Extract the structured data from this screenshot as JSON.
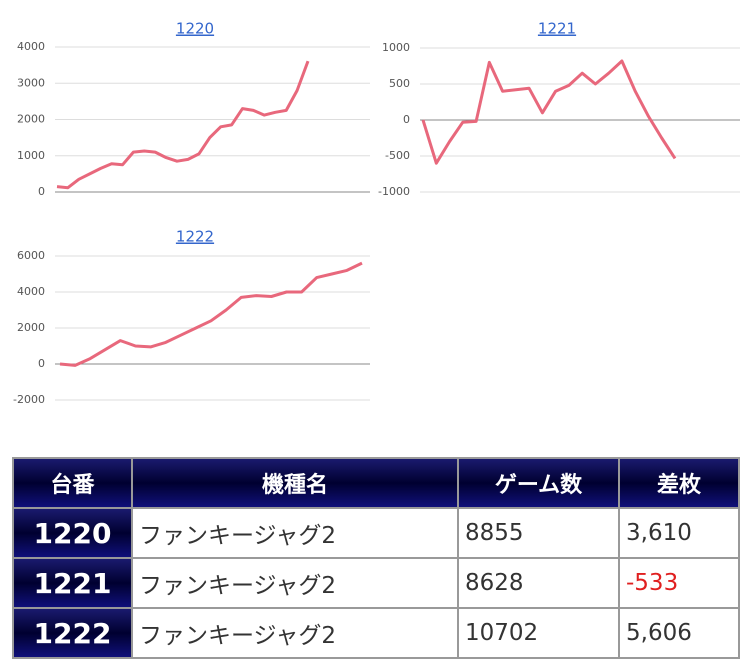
{
  "chart_data": [
    {
      "type": "line",
      "title": "1220",
      "color": "#e8687c",
      "grid": true,
      "ylim": [
        0,
        4000
      ],
      "yticks": [
        0,
        1000,
        2000,
        3000,
        4000
      ],
      "values": [
        150,
        120,
        350,
        500,
        650,
        780,
        750,
        1100,
        1130,
        1100,
        950,
        850,
        900,
        1050,
        1500,
        1800,
        1850,
        2300,
        2250,
        2120,
        2200,
        2250,
        2800,
        3610
      ]
    },
    {
      "type": "line",
      "title": "1221",
      "color": "#e8687c",
      "grid": true,
      "ylim": [
        -1000,
        1000
      ],
      "yticks": [
        -1000,
        -500,
        0,
        500,
        1000
      ],
      "values": [
        0,
        -600,
        -300,
        -30,
        -20,
        800,
        400,
        420,
        440,
        100,
        400,
        480,
        650,
        500,
        650,
        820,
        400,
        50,
        -250,
        -533
      ]
    },
    {
      "type": "line",
      "title": "1222",
      "color": "#e8687c",
      "grid": true,
      "ylim": [
        -2000,
        6000
      ],
      "yticks": [
        -2000,
        0,
        2000,
        4000,
        6000
      ],
      "values": [
        0,
        -80,
        300,
        800,
        1300,
        1000,
        950,
        1200,
        1600,
        2000,
        2400,
        3000,
        3700,
        3800,
        3750,
        4000,
        4000,
        4800,
        5000,
        5200,
        5606
      ]
    }
  ],
  "table": {
    "header": [
      "台番",
      "機種名",
      "ゲーム数",
      "差枚"
    ],
    "rows": [
      [
        "1220",
        "ファンキージャグ2",
        "8855",
        "3,610"
      ],
      [
        "1221",
        "ファンキージャグ2",
        "8628",
        "-533"
      ],
      [
        "1222",
        "ファンキージャグ2",
        "10702",
        "5,606"
      ]
    ]
  }
}
